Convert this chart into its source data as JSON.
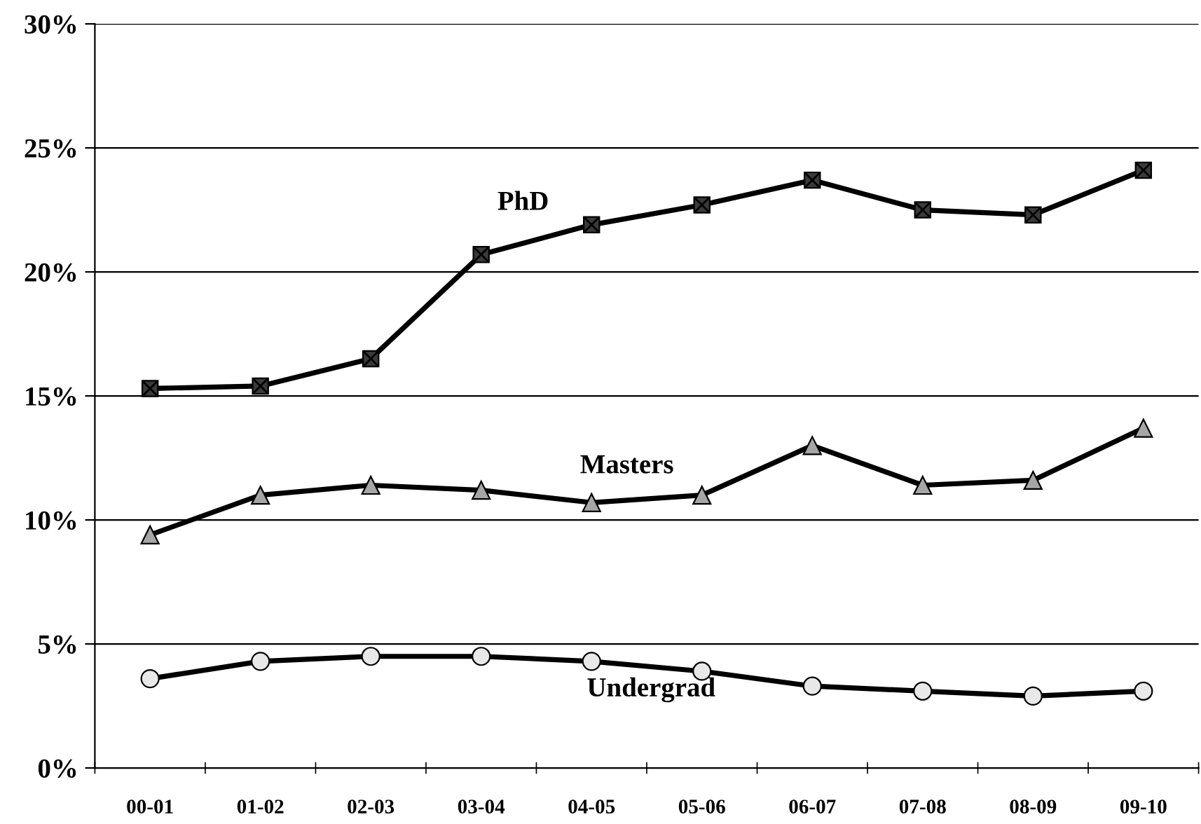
{
  "chart_data": {
    "type": "line",
    "categories": [
      "00-01",
      "01-02",
      "02-03",
      "03-04",
      "04-05",
      "05-06",
      "06-07",
      "07-08",
      "08-09",
      "09-10"
    ],
    "series": [
      {
        "name": "PhD",
        "color": "#3a3a3a",
        "marker": "square",
        "values": [
          15.3,
          15.4,
          16.5,
          20.7,
          21.9,
          22.7,
          23.7,
          22.5,
          22.3,
          24.1
        ]
      },
      {
        "name": "Masters",
        "color": "#a6a6a6",
        "marker": "triangle",
        "values": [
          9.4,
          11.0,
          11.4,
          11.2,
          10.7,
          11.0,
          13.0,
          11.4,
          11.6,
          13.7
        ]
      },
      {
        "name": "Undergrad",
        "color": "#e8e8e8",
        "marker": "circle",
        "values": [
          3.6,
          4.3,
          4.5,
          4.5,
          4.3,
          3.9,
          3.3,
          3.1,
          2.9,
          3.1
        ]
      }
    ],
    "ylim": [
      0,
      30
    ],
    "yticks": [
      {
        "value": 0,
        "label": "0%"
      },
      {
        "value": 5,
        "label": "5%"
      },
      {
        "value": 10,
        "label": "10%"
      },
      {
        "value": 15,
        "label": "15%"
      },
      {
        "value": 20,
        "label": "20%"
      },
      {
        "value": 25,
        "label": "25%"
      },
      {
        "value": 30,
        "label": "30%"
      }
    ],
    "grid": "y",
    "legend": false,
    "line_style": "solid"
  }
}
